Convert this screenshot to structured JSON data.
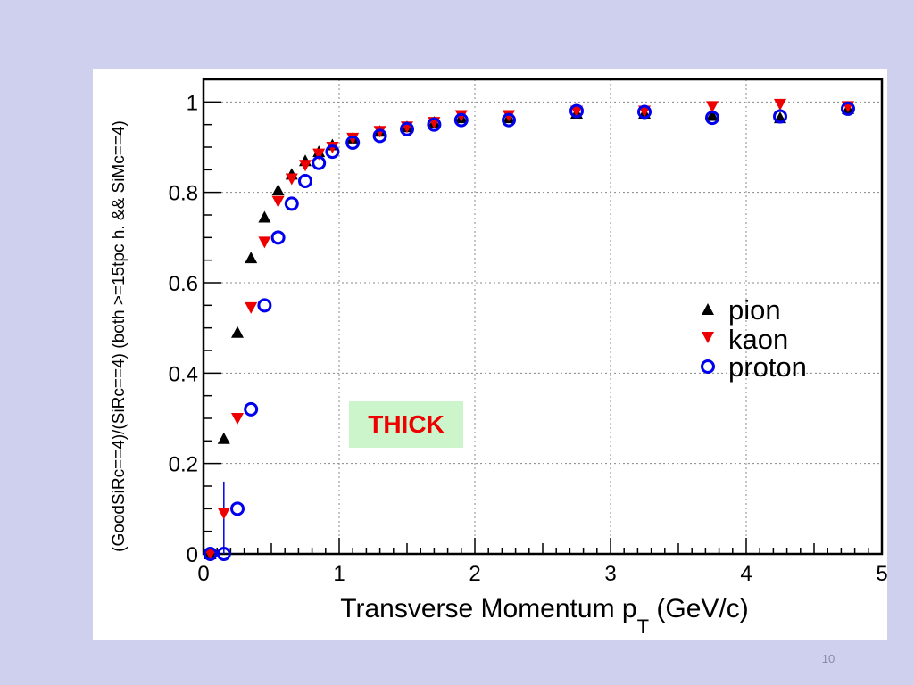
{
  "slide": {
    "page_number": "10",
    "background": "#cfd0ee"
  },
  "annotation": {
    "text": "THICK",
    "background": "#ccf5cc",
    "color": "#ee0000"
  },
  "chart_data": {
    "type": "scatter",
    "xlabel_main": "Transverse Momentum p",
    "xlabel_sub": "T",
    "xlabel_unit": " (GeV/c)",
    "ylabel": "(GoodSiRc==4)/(SiRc==4) (both >=15tpc h. && SiMc==4)",
    "xlim": [
      0,
      5
    ],
    "ylim": [
      0,
      1.05
    ],
    "x_ticks": [
      0,
      1,
      2,
      3,
      4,
      5
    ],
    "x_tick_labels": [
      "0",
      "1",
      "2",
      "3",
      "4",
      "5"
    ],
    "y_ticks": [
      0,
      0.2,
      0.4,
      0.6,
      0.8,
      1
    ],
    "y_tick_labels": [
      "0",
      "0.2",
      "0.4",
      "0.6",
      "0.8",
      "1"
    ],
    "grid": true,
    "legend_position": "right-middle",
    "series": [
      {
        "name": "pion",
        "marker": "triangle-up",
        "color": "#000000",
        "x": [
          0.05,
          0.15,
          0.25,
          0.35,
          0.45,
          0.55,
          0.65,
          0.75,
          0.85,
          0.95,
          1.1,
          1.3,
          1.5,
          1.7,
          1.9,
          2.25,
          2.75,
          3.25,
          3.75,
          4.25,
          4.75
        ],
        "y": [
          0.0,
          0.255,
          0.49,
          0.655,
          0.745,
          0.805,
          0.84,
          0.87,
          0.89,
          0.905,
          0.92,
          0.935,
          0.945,
          0.955,
          0.965,
          0.965,
          0.975,
          0.975,
          0.97,
          0.965,
          0.985
        ]
      },
      {
        "name": "kaon",
        "marker": "triangle-down",
        "color": "#ee0000",
        "x": [
          0.05,
          0.15,
          0.25,
          0.35,
          0.45,
          0.55,
          0.65,
          0.75,
          0.85,
          0.95,
          1.1,
          1.3,
          1.5,
          1.7,
          1.9,
          2.25,
          2.75,
          3.25,
          3.75,
          4.25,
          4.75
        ],
        "y": [
          0.0,
          0.09,
          0.3,
          0.545,
          0.69,
          0.78,
          0.83,
          0.86,
          0.885,
          0.9,
          0.92,
          0.935,
          0.945,
          0.955,
          0.97,
          0.97,
          0.98,
          0.98,
          0.99,
          0.995,
          0.99
        ],
        "error_bars": [
          {
            "x": 0.15,
            "low": 0.0,
            "high": 0.16
          }
        ]
      },
      {
        "name": "proton",
        "marker": "circle-open",
        "color": "#0000ee",
        "x": [
          0.05,
          0.15,
          0.25,
          0.35,
          0.45,
          0.55,
          0.65,
          0.75,
          0.85,
          0.95,
          1.1,
          1.3,
          1.5,
          1.7,
          1.9,
          2.25,
          2.75,
          3.25,
          3.75,
          4.25,
          4.75
        ],
        "y": [
          0.0,
          0.0,
          0.1,
          0.32,
          0.55,
          0.7,
          0.775,
          0.825,
          0.865,
          0.89,
          0.91,
          0.925,
          0.94,
          0.95,
          0.96,
          0.96,
          0.98,
          0.978,
          0.965,
          0.968,
          0.985
        ]
      }
    ]
  }
}
